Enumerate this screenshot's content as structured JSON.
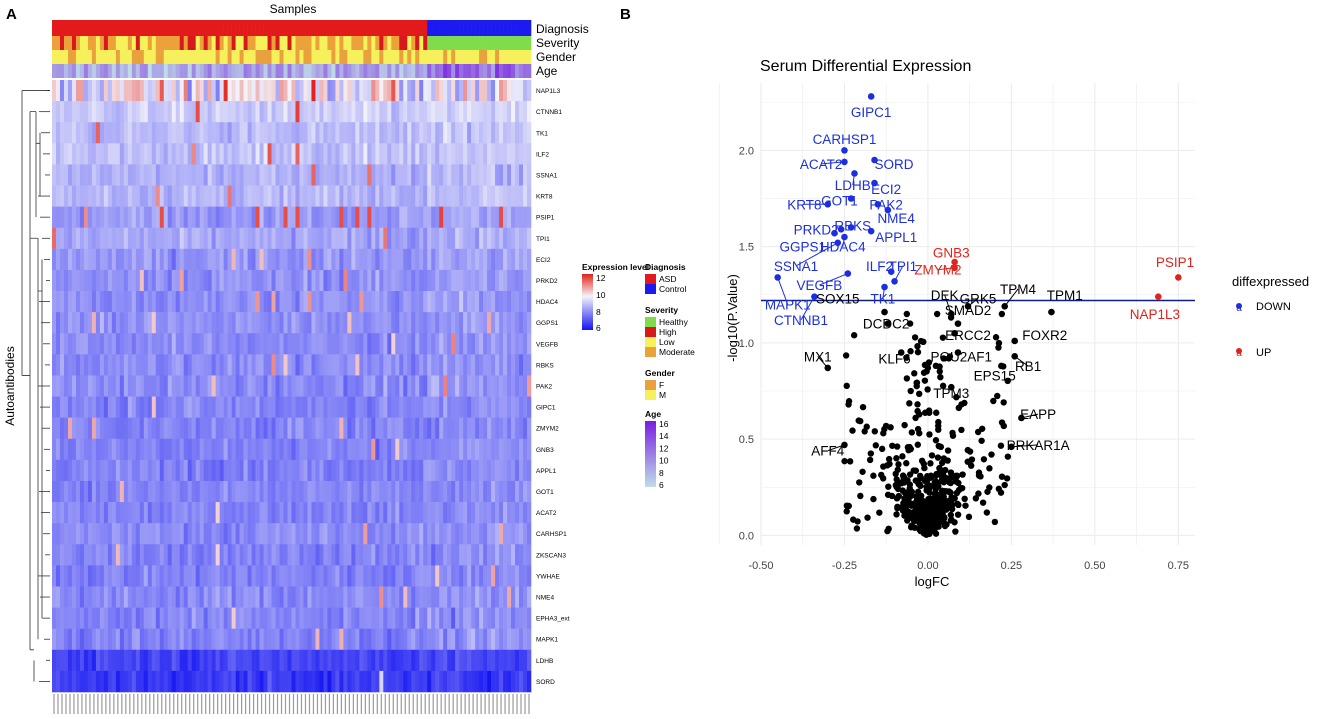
{
  "panel_a": {
    "panel_label": "A",
    "top_label": "Samples",
    "y_axis_label": "Autoantibodies",
    "track_labels": [
      "Diagnosis",
      "Severity",
      "Gender",
      "Age"
    ],
    "rows": [
      "NAP1L3",
      "CTNNB1",
      "TK1",
      "ILF2",
      "SSNA1",
      "KRT8",
      "PSIP1",
      "TPI1",
      "ECI2",
      "PRKD2",
      "HDAC4",
      "GGPS1",
      "VEGFB",
      "RBKS",
      "PAK2",
      "GIPC1",
      "ZMYM2",
      "GNB3",
      "APPL1",
      "GOT1",
      "ACAT2",
      "CARHSP1",
      "ZKSCAN3",
      "YWHAE",
      "NME4",
      "EPHA3_ext",
      "MAPK1",
      "LDHB",
      "SORD"
    ],
    "legend": {
      "expression": {
        "title": "Expression level",
        "ticks": [
          "12",
          "10",
          "8",
          "6"
        ]
      },
      "diagnosis": {
        "title": "Diagnosis",
        "items": [
          {
            "label": "ASD",
            "color": "#e31a1c"
          },
          {
            "label": "Control",
            "color": "#1b1bf0"
          }
        ]
      },
      "severity": {
        "title": "Severity",
        "items": [
          {
            "label": "Healthy",
            "color": "#7fdc4a"
          },
          {
            "label": "High",
            "color": "#d7191c"
          },
          {
            "label": "Low",
            "color": "#f6f25c"
          },
          {
            "label": "Moderate",
            "color": "#eba23a"
          }
        ]
      },
      "gender": {
        "title": "Gender",
        "items": [
          {
            "label": "F",
            "color": "#e8a13c"
          },
          {
            "label": "M",
            "color": "#f6f05c"
          }
        ]
      },
      "age": {
        "title": "Age",
        "ticks": [
          "16",
          "14",
          "12",
          "10",
          "8",
          "6"
        ]
      }
    }
  },
  "chart_data": {
    "type": "scatter",
    "panel_label": "B",
    "title": "Serum Differential Expression",
    "xlabel": "logFC",
    "ylabel": "-log10(P.Value)",
    "xlim": [
      -0.5,
      0.8
    ],
    "ylim": [
      -0.05,
      2.35
    ],
    "xticks": [
      "-0.50",
      "-0.25",
      "0.00",
      "0.25",
      "0.50",
      "0.75"
    ],
    "xtick_values": [
      -0.5,
      -0.25,
      0,
      0.25,
      0.5,
      0.75
    ],
    "yticks": [
      "0.0",
      "0.5",
      "1.0",
      "1.5",
      "2.0"
    ],
    "ytick_values": [
      0,
      0.5,
      1.0,
      1.5,
      2.0
    ],
    "threshold_y": 1.22,
    "colors": {
      "DOWN": "#1c2fe0",
      "UP": "#e0231c",
      "NO": "#000000",
      "threshold": "#0d1f80"
    },
    "legend": {
      "title": "diffexpressed",
      "items": [
        {
          "label": "DOWN",
          "color": "#1c2fe0"
        },
        {
          "label": "UP",
          "color": "#e0231c"
        }
      ]
    },
    "labeled_points": [
      {
        "label": "GIPC1",
        "x": -0.17,
        "y": 2.28,
        "group": "DOWN"
      },
      {
        "label": "CARHSP1",
        "x": -0.25,
        "y": 2.0,
        "group": "DOWN"
      },
      {
        "label": "SORD",
        "x": -0.16,
        "y": 1.95,
        "group": "DOWN"
      },
      {
        "label": "ACAT2",
        "x": -0.25,
        "y": 1.94,
        "group": "DOWN"
      },
      {
        "label": "LDHB",
        "x": -0.22,
        "y": 1.88,
        "group": "DOWN"
      },
      {
        "label": "ECI2",
        "x": -0.16,
        "y": 1.83,
        "group": "DOWN"
      },
      {
        "label": "GOT1",
        "x": -0.23,
        "y": 1.75,
        "group": "DOWN"
      },
      {
        "label": "PAK2",
        "x": -0.15,
        "y": 1.72,
        "group": "DOWN"
      },
      {
        "label": "KRT8",
        "x": -0.3,
        "y": 1.72,
        "group": "DOWN"
      },
      {
        "label": "NME4",
        "x": -0.12,
        "y": 1.69,
        "group": "DOWN"
      },
      {
        "label": "RBKS",
        "x": -0.23,
        "y": 1.6,
        "group": "DOWN"
      },
      {
        "label": "PRKD2",
        "x": -0.26,
        "y": 1.59,
        "group": "DOWN"
      },
      {
        "label": "APPL1",
        "x": -0.17,
        "y": 1.58,
        "group": "DOWN"
      },
      {
        "label": "GGPS1",
        "x": -0.28,
        "y": 1.57,
        "group": "DOWN"
      },
      {
        "label": "HDAC4",
        "x": -0.25,
        "y": 1.55,
        "group": "DOWN"
      },
      {
        "label": "SSNA1",
        "x": -0.27,
        "y": 1.52,
        "group": "DOWN"
      },
      {
        "label": "ILF2",
        "x": -0.11,
        "y": 1.37,
        "group": "DOWN"
      },
      {
        "label": "TPI1",
        "x": -0.1,
        "y": 1.32,
        "group": "DOWN"
      },
      {
        "label": "VEGFB",
        "x": -0.24,
        "y": 1.36,
        "group": "DOWN"
      },
      {
        "label": "TK1",
        "x": -0.13,
        "y": 1.29,
        "group": "DOWN"
      },
      {
        "label": "MAPK1",
        "x": -0.45,
        "y": 1.34,
        "group": "DOWN"
      },
      {
        "label": "CTNNB1",
        "x": -0.34,
        "y": 1.24,
        "group": "DOWN"
      },
      {
        "label": "GNB3",
        "x": 0.08,
        "y": 1.42,
        "group": "UP"
      },
      {
        "label": "ZMYM2",
        "x": 0.08,
        "y": 1.39,
        "group": "UP"
      },
      {
        "label": "PSIP1",
        "x": 0.75,
        "y": 1.34,
        "group": "UP"
      },
      {
        "label": "NAP1L3",
        "x": 0.69,
        "y": 1.24,
        "group": "UP"
      },
      {
        "label": "TPM4",
        "x": 0.23,
        "y": 1.19,
        "group": "NO"
      },
      {
        "label": "GRK5",
        "x": 0.12,
        "y": 1.19,
        "group": "NO"
      },
      {
        "label": "TPM1",
        "x": 0.37,
        "y": 1.16,
        "group": "NO"
      },
      {
        "label": "DEK",
        "x": 0.07,
        "y": 1.15,
        "group": "NO"
      },
      {
        "label": "SMAD2",
        "x": 0.09,
        "y": 1.1,
        "group": "NO"
      },
      {
        "label": "SOX15",
        "x": -0.13,
        "y": 1.16,
        "group": "NO"
      },
      {
        "label": "DCDC2",
        "x": -0.12,
        "y": 1.1,
        "group": "NO"
      },
      {
        "label": "ERCC2",
        "x": 0.08,
        "y": 1.05,
        "group": "NO"
      },
      {
        "label": "FOXR2",
        "x": 0.26,
        "y": 1.01,
        "group": "NO"
      },
      {
        "label": "MX1",
        "x": -0.3,
        "y": 0.87,
        "group": "NO"
      },
      {
        "label": "KLF6",
        "x": -0.08,
        "y": 0.95,
        "group": "NO"
      },
      {
        "label": "POU2AF1",
        "x": 0.09,
        "y": 0.95,
        "group": "NO"
      },
      {
        "label": "RB1",
        "x": 0.26,
        "y": 0.93,
        "group": "NO"
      },
      {
        "label": "EPS15",
        "x": 0.22,
        "y": 0.88,
        "group": "NO"
      },
      {
        "label": "TPM3",
        "x": 0.07,
        "y": 0.77,
        "group": "NO"
      },
      {
        "label": "EAPP",
        "x": 0.28,
        "y": 0.61,
        "group": "NO"
      },
      {
        "label": "PRKAR1A",
        "x": 0.25,
        "y": 0.46,
        "group": "NO"
      },
      {
        "label": "AFF4",
        "x": -0.25,
        "y": 0.47,
        "group": "NO"
      }
    ]
  }
}
